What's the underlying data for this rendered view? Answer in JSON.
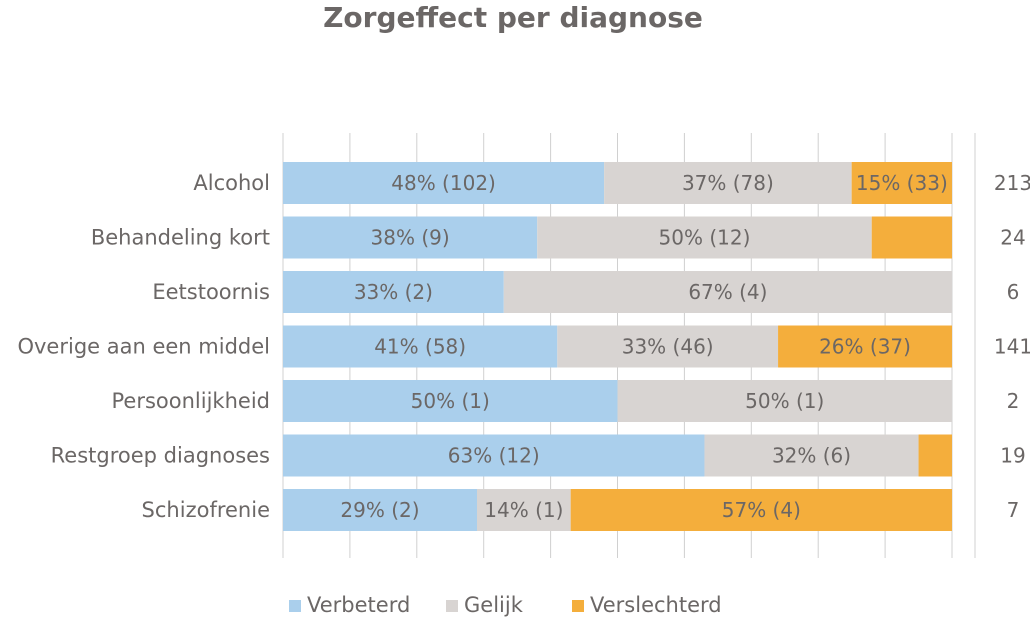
{
  "colors": {
    "verbeterd": "#aacfec",
    "gelijk": "#d8d4d2",
    "verslechterd": "#f4ae3c",
    "text": "#6b6766",
    "grid": "#d0d0d0"
  },
  "chart_data": {
    "type": "bar",
    "orientation": "horizontal",
    "stacked": true,
    "normalized": true,
    "title": "Zorgeffect per diagnose",
    "xlabel": "",
    "ylabel": "",
    "xlim": [
      0,
      100
    ],
    "grid": true,
    "legend_position": "bottom",
    "categories": [
      "Alcohol",
      "Behandeling kort",
      "Eetstoornis",
      "Overige aan een middel",
      "Persoonlijkheid",
      "Restgroep diagnoses",
      "Schizofrenie"
    ],
    "series": [
      {
        "name": "Verbeterd",
        "color": "#aacfec",
        "values": [
          48,
          38,
          33,
          41,
          50,
          63,
          29
        ],
        "labels": [
          "48% (102)",
          "38% (9)",
          "33% (2)",
          "41% (58)",
          "50% (1)",
          "63% (12)",
          "29% (2)"
        ]
      },
      {
        "name": "Gelijk",
        "color": "#d8d4d2",
        "values": [
          37,
          50,
          67,
          33,
          50,
          32,
          14
        ],
        "labels": [
          "37% (78)",
          "50% (12)",
          "67% (4)",
          "33% (46)",
          "50% (1)",
          "32% (6)",
          "14% (1)"
        ]
      },
      {
        "name": "Verslechterd",
        "color": "#f4ae3c",
        "values": [
          15,
          12,
          0,
          26,
          0,
          5,
          57
        ],
        "labels": [
          "15% (33)",
          "",
          "",
          "26% (37)",
          "",
          "",
          "57% (4)"
        ]
      }
    ],
    "totals": [
      "213",
      "24",
      "6",
      "141",
      "2",
      "19",
      "7"
    ]
  }
}
